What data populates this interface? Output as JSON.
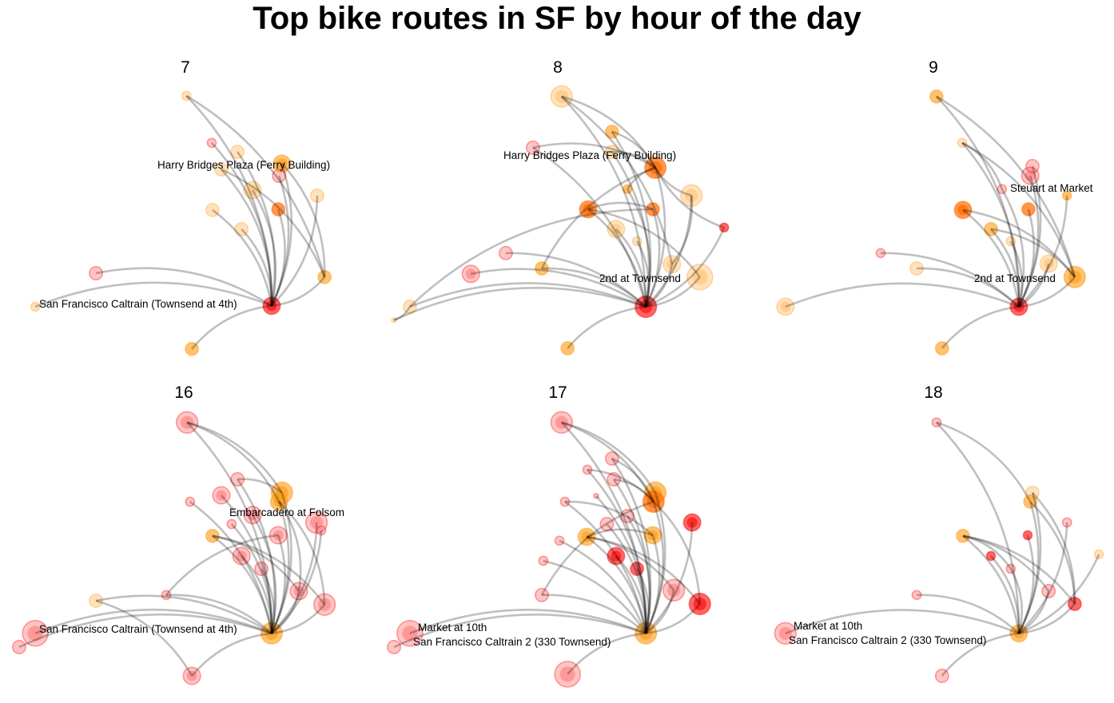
{
  "chart_data": {
    "type": "network",
    "title": "Top bike routes in SF by hour of the day",
    "coordinate_note": "map units 0-100 (east, north) within each panel",
    "colors": {
      "R": "#ff2a2a",
      "X": "#ff0000",
      "O": "#ff9a10",
      "L": "#ffad40",
      "D": "#ff6a00"
    },
    "panels": [
      {
        "hour": "7",
        "hub": 14,
        "nodes": [
          [
            50.7,
            85,
            1,
            "L"
          ],
          [
            57.6,
            70.3,
            1,
            "R"
          ],
          [
            64.6,
            67.5,
            2,
            "L"
          ],
          [
            76.7,
            63.8,
            3,
            "O"
          ],
          [
            75.9,
            60,
            2,
            "R"
          ],
          [
            60.2,
            62,
            2,
            "L"
          ],
          [
            68.7,
            55.5,
            3,
            "L"
          ],
          [
            86.3,
            53.8,
            2,
            "L"
          ],
          [
            57.8,
            49.3,
            2,
            "L"
          ],
          [
            75.7,
            49.5,
            2,
            "D"
          ],
          [
            65.7,
            43.3,
            2,
            "L"
          ],
          [
            26.1,
            29.5,
            2,
            "R"
          ],
          [
            88.3,
            28.3,
            2,
            "O"
          ],
          [
            9.6,
            19,
            1,
            "L"
          ],
          [
            73.9,
            19.3,
            3,
            "X"
          ],
          [
            52.2,
            5.8,
            2,
            "O"
          ]
        ],
        "extra_edges": [
          [
            0,
            12
          ],
          [
            3,
            12
          ],
          [
            5,
            12
          ]
        ],
        "labels": [
          "Harry Bridges Plaza (Ferry Building)",
          "San Francisco Caltrain (Townsend at 4th)"
        ]
      },
      {
        "hour": "8",
        "hub": 19,
        "nodes": [
          [
            51.7,
            84.8,
            4,
            "L"
          ],
          [
            65.4,
            73.8,
            2,
            "O"
          ],
          [
            65.4,
            67.5,
            2,
            "L"
          ],
          [
            43.9,
            68.8,
            2,
            "R"
          ],
          [
            77.2,
            62.5,
            4,
            "D"
          ],
          [
            69.6,
            55.8,
            1,
            "O"
          ],
          [
            87,
            53.8,
            4,
            "L"
          ],
          [
            58.9,
            49.5,
            3,
            "D"
          ],
          [
            76.5,
            49.5,
            2,
            "D"
          ],
          [
            95.9,
            43.8,
            1,
            "X"
          ],
          [
            66.5,
            43.3,
            3,
            "L"
          ],
          [
            72.2,
            39.5,
            1,
            "L"
          ],
          [
            36.5,
            35.8,
            2,
            "R"
          ],
          [
            46.3,
            31,
            2,
            "O"
          ],
          [
            81.7,
            32.3,
            3,
            "L"
          ],
          [
            89.3,
            28.3,
            5,
            "L"
          ],
          [
            27,
            29.3,
            3,
            "R"
          ],
          [
            10.4,
            19,
            2,
            "L"
          ],
          [
            6.1,
            14.8,
            0,
            "L"
          ],
          [
            74.6,
            19,
            4,
            "X"
          ],
          [
            53.3,
            6,
            2,
            "O"
          ]
        ],
        "extra_edges": [
          [
            0,
            4
          ],
          [
            1,
            4
          ],
          [
            2,
            4
          ],
          [
            3,
            4
          ],
          [
            5,
            4
          ],
          [
            6,
            4
          ],
          [
            9,
            4
          ],
          [
            0,
            14
          ],
          [
            7,
            8
          ],
          [
            7,
            15
          ],
          [
            17,
            8
          ],
          [
            17,
            18
          ],
          [
            13,
            4
          ],
          [
            6,
            14
          ]
        ],
        "labels": [
          "Harry Bridges Plaza (Ferry Building)",
          "2nd at Townsend"
        ]
      },
      {
        "hour": "9",
        "hub": 15,
        "nodes": [
          [
            51.5,
            84.8,
            2,
            "O"
          ],
          [
            58.5,
            70.3,
            1,
            "L"
          ],
          [
            77.6,
            63,
            2,
            "R"
          ],
          [
            77,
            60,
            3,
            "R"
          ],
          [
            69.3,
            55.8,
            1,
            "R"
          ],
          [
            87,
            53.8,
            1,
            "O"
          ],
          [
            58.7,
            49.3,
            3,
            "D"
          ],
          [
            76.5,
            49.5,
            2,
            "D"
          ],
          [
            66.3,
            43.3,
            2,
            "O"
          ],
          [
            71.7,
            39.5,
            1,
            "L"
          ],
          [
            36.3,
            35.8,
            1,
            "R"
          ],
          [
            46.1,
            31,
            2,
            "L"
          ],
          [
            82,
            32.5,
            3,
            "L"
          ],
          [
            89.1,
            28.3,
            4,
            "O"
          ],
          [
            10.4,
            19,
            3,
            "L"
          ],
          [
            73.9,
            19,
            3,
            "X"
          ],
          [
            53,
            6,
            2,
            "O"
          ]
        ],
        "extra_edges": [
          [
            0,
            13
          ],
          [
            1,
            13
          ],
          [
            1,
            4
          ],
          [
            6,
            13
          ],
          [
            8,
            13
          ]
        ],
        "labels": [
          "Steuart at Market",
          "2nd at Townsend"
        ]
      },
      {
        "hour": "16",
        "hub": 20,
        "nodes": [
          [
            50.9,
            85.3,
            4,
            "R"
          ],
          [
            64.6,
            67.5,
            2,
            "R"
          ],
          [
            76.7,
            63.3,
            4,
            "O"
          ],
          [
            75.9,
            60.5,
            3,
            "O"
          ],
          [
            60.2,
            62.5,
            3,
            "R"
          ],
          [
            51.7,
            60.5,
            1,
            "R"
          ],
          [
            68.7,
            56.3,
            3,
            "R"
          ],
          [
            86.1,
            54,
            4,
            "R"
          ],
          [
            87.4,
            51.5,
            1,
            "R"
          ],
          [
            63,
            53.5,
            1,
            "R"
          ],
          [
            57.8,
            49.8,
            2,
            "O"
          ],
          [
            75.7,
            50,
            3,
            "R"
          ],
          [
            65.7,
            43.5,
            3,
            "R"
          ],
          [
            71.1,
            39.5,
            2,
            "R"
          ],
          [
            81.3,
            32.5,
            3,
            "R"
          ],
          [
            88.3,
            28.3,
            4,
            "R"
          ],
          [
            45.2,
            31.3,
            1,
            "R"
          ],
          [
            26.1,
            29.5,
            2,
            "L"
          ],
          [
            9.6,
            19.3,
            5,
            "R"
          ],
          [
            5.2,
            15,
            2,
            "R"
          ],
          [
            73.9,
            19.3,
            4,
            "O"
          ],
          [
            52.2,
            6,
            3,
            "R"
          ]
        ],
        "extra_edges": [
          [
            0,
            2
          ],
          [
            0,
            3
          ],
          [
            1,
            2
          ],
          [
            10,
            14
          ],
          [
            10,
            15
          ],
          [
            3,
            14
          ],
          [
            3,
            15
          ],
          [
            17,
            21
          ],
          [
            16,
            11
          ]
        ],
        "labels": [
          "Embarcadero at Folsom",
          "San Francisco Caltrain (Townsend at 4th)"
        ]
      },
      {
        "hour": "17",
        "hub": 22,
        "nodes": [
          [
            51.7,
            85.3,
            4,
            "R"
          ],
          [
            65.4,
            74,
            2,
            "R"
          ],
          [
            58.7,
            70.5,
            1,
            "R"
          ],
          [
            65.9,
            67.5,
            2,
            "R"
          ],
          [
            77.2,
            63.3,
            4,
            "O"
          ],
          [
            76.7,
            60.5,
            4,
            "D"
          ],
          [
            61.1,
            62.3,
            0,
            "R"
          ],
          [
            52.6,
            60.5,
            1,
            "R"
          ],
          [
            69.6,
            56,
            2,
            "R"
          ],
          [
            87.2,
            54,
            3,
            "X"
          ],
          [
            64,
            53.5,
            2,
            "R"
          ],
          [
            58.5,
            49.5,
            3,
            "O"
          ],
          [
            76.5,
            50,
            3,
            "O"
          ],
          [
            51.1,
            48.3,
            1,
            "R"
          ],
          [
            66.5,
            43.5,
            3,
            "X"
          ],
          [
            72.2,
            39.5,
            2,
            "X"
          ],
          [
            46.7,
            42,
            1,
            "R"
          ],
          [
            82.2,
            32.8,
            4,
            "R"
          ],
          [
            89.3,
            28.5,
            4,
            "X"
          ],
          [
            46.3,
            31.3,
            2,
            "R"
          ],
          [
            10.4,
            19.3,
            5,
            "R"
          ],
          [
            6.1,
            15,
            2,
            "R"
          ],
          [
            74.6,
            19.3,
            4,
            "O"
          ],
          [
            53.3,
            6.5,
            5,
            "R"
          ]
        ],
        "extra_edges": [
          [
            0,
            4
          ],
          [
            0,
            5
          ],
          [
            1,
            5
          ],
          [
            2,
            5
          ],
          [
            3,
            5
          ],
          [
            7,
            12
          ],
          [
            11,
            17
          ],
          [
            11,
            18
          ],
          [
            11,
            12
          ],
          [
            5,
            18
          ],
          [
            19,
            5
          ]
        ],
        "labels": [
          "Market at 10th",
          "San Francisco Caltrain 2 (330 Townsend)"
        ]
      },
      {
        "hour": "18",
        "hub": 13,
        "nodes": [
          [
            51.5,
            85.3,
            1,
            "R"
          ],
          [
            77.6,
            63.3,
            2,
            "L"
          ],
          [
            77,
            60.5,
            2,
            "O"
          ],
          [
            87,
            54,
            1,
            "R"
          ],
          [
            76.3,
            50,
            1,
            "X"
          ],
          [
            58.7,
            49.8,
            2,
            "O"
          ],
          [
            66.3,
            43.5,
            1,
            "X"
          ],
          [
            71.7,
            39.5,
            1,
            "R"
          ],
          [
            95.7,
            44,
            1,
            "L"
          ],
          [
            82,
            32.5,
            2,
            "R"
          ],
          [
            89.1,
            28.5,
            2,
            "X"
          ],
          [
            46.1,
            31.3,
            1,
            "R"
          ],
          [
            10.4,
            19.3,
            4,
            "R"
          ],
          [
            73.9,
            19.3,
            3,
            "O"
          ],
          [
            53,
            6,
            2,
            "R"
          ]
        ],
        "extra_edges": [
          [
            0,
            2
          ],
          [
            1,
            10
          ],
          [
            2,
            10
          ],
          [
            5,
            10
          ],
          [
            5,
            9
          ],
          [
            5,
            7
          ]
        ],
        "labels": [
          "Market at 10th",
          "San Francisco Caltrain 2 (330 Townsend)"
        ]
      }
    ]
  }
}
